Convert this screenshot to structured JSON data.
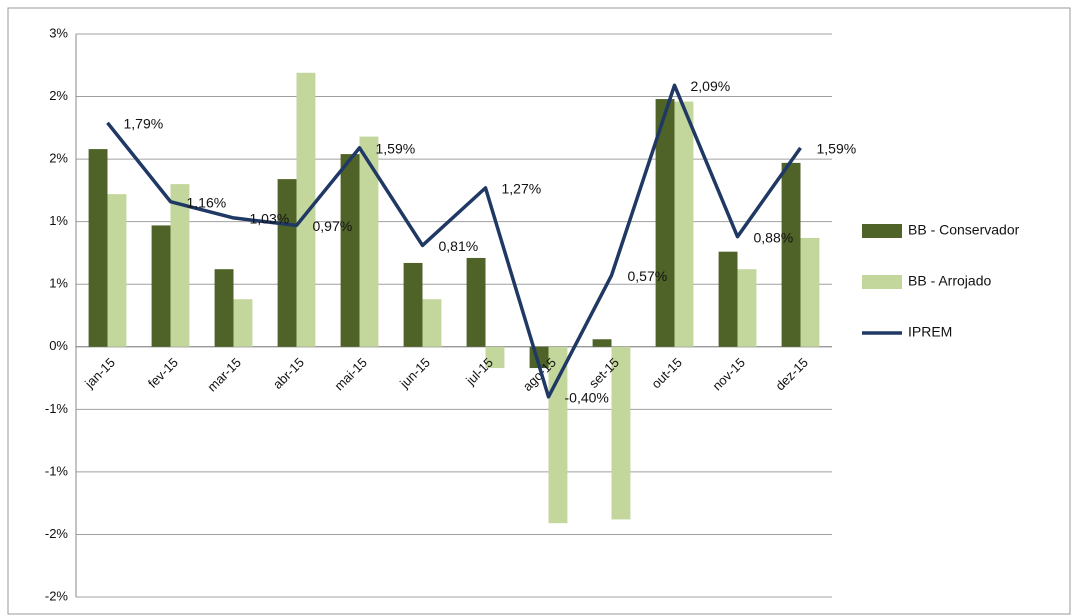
{
  "chart_data": {
    "type": "bar_line",
    "categories": [
      "jan-15",
      "fev-15",
      "mar-15",
      "abr-15",
      "mai-15",
      "jun-15",
      "jul-15",
      "ago-15",
      "set-15",
      "out-15",
      "nov-15",
      "dez-15"
    ],
    "series": [
      {
        "name": "BB - Conservador",
        "type": "bar",
        "color": "#4f6228",
        "values": [
          1.58,
          0.97,
          0.62,
          1.34,
          1.54,
          0.67,
          0.71,
          -0.17,
          0.06,
          1.98,
          0.76,
          1.47
        ]
      },
      {
        "name": "BB - Arrojado",
        "type": "bar",
        "color": "#c3d69b",
        "values": [
          1.22,
          1.3,
          0.38,
          2.19,
          1.68,
          0.38,
          -0.17,
          -1.41,
          -1.38,
          1.96,
          0.62,
          0.87
        ]
      },
      {
        "name": "IPREM",
        "type": "line",
        "color": "#1f3864",
        "values": [
          1.79,
          1.16,
          1.03,
          0.97,
          1.59,
          0.81,
          1.27,
          -0.4,
          0.57,
          2.09,
          0.88,
          1.59
        ],
        "value_labels": [
          "1,79%",
          "1,16%",
          "1,03%",
          "0,97%",
          "1,59%",
          "0,81%",
          "1,27%",
          "-0,40%",
          "0,57%",
          "2,09%",
          "0,88%",
          "1,59%"
        ]
      }
    ],
    "ylim": [
      -2.0,
      2.5
    ],
    "yticks": [
      {
        "value": 2.5,
        "label": "3%"
      },
      {
        "value": 2.0,
        "label": "2%"
      },
      {
        "value": 1.5,
        "label": "2%"
      },
      {
        "value": 1.0,
        "label": "1%"
      },
      {
        "value": 0.5,
        "label": "1%"
      },
      {
        "value": 0,
        "label": "0%"
      },
      {
        "value": -0.5,
        "label": "-1%"
      },
      {
        "value": -1.0,
        "label": "-1%"
      },
      {
        "value": -1.5,
        "label": "-2%"
      },
      {
        "value": -2.0,
        "label": "-2%"
      }
    ],
    "grid": true,
    "legend": "right"
  }
}
